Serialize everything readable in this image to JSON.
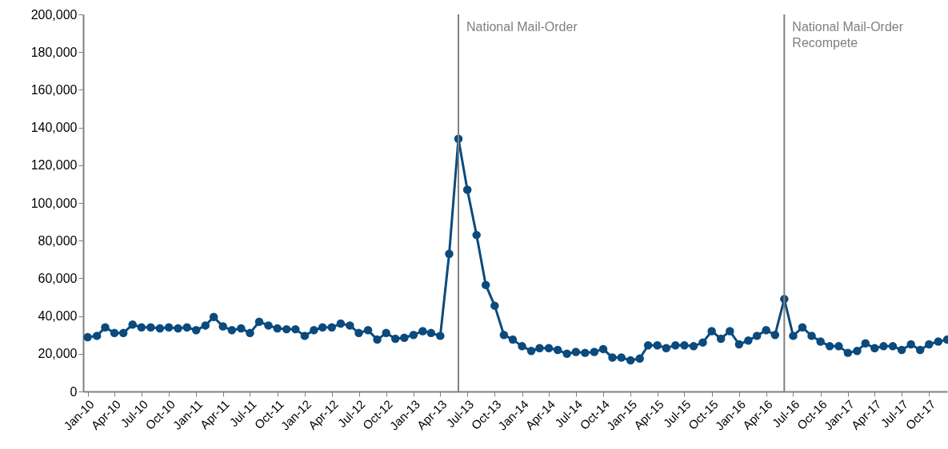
{
  "chart_data": {
    "type": "line",
    "x": [
      "2010-01",
      "2010-02",
      "2010-03",
      "2010-04",
      "2010-05",
      "2010-06",
      "2010-07",
      "2010-08",
      "2010-09",
      "2010-10",
      "2010-11",
      "2010-12",
      "2011-01",
      "2011-02",
      "2011-03",
      "2011-04",
      "2011-05",
      "2011-06",
      "2011-07",
      "2011-08",
      "2011-09",
      "2011-10",
      "2011-11",
      "2011-12",
      "2012-01",
      "2012-02",
      "2012-03",
      "2012-04",
      "2012-05",
      "2012-06",
      "2012-07",
      "2012-08",
      "2012-09",
      "2012-10",
      "2012-11",
      "2012-12",
      "2013-01",
      "2013-02",
      "2013-03",
      "2013-04",
      "2013-05",
      "2013-06",
      "2013-07",
      "2013-08",
      "2013-09",
      "2013-10",
      "2013-11",
      "2013-12",
      "2014-01",
      "2014-02",
      "2014-03",
      "2014-04",
      "2014-05",
      "2014-06",
      "2014-07",
      "2014-08",
      "2014-09",
      "2014-10",
      "2014-11",
      "2014-12",
      "2015-01",
      "2015-02",
      "2015-03",
      "2015-04",
      "2015-05",
      "2015-06",
      "2015-07",
      "2015-08",
      "2015-09",
      "2015-10",
      "2015-11",
      "2015-12",
      "2016-01",
      "2016-02",
      "2016-03",
      "2016-04",
      "2016-05",
      "2016-06",
      "2016-07",
      "2016-08",
      "2016-09",
      "2016-10",
      "2016-11",
      "2016-12",
      "2017-01",
      "2017-02",
      "2017-03",
      "2017-04",
      "2017-05",
      "2017-06",
      "2017-07",
      "2017-08",
      "2017-09",
      "2017-10",
      "2017-11",
      "2017-12"
    ],
    "series": [
      {
        "color": "#0b4a7d",
        "values": [
          28800,
          29500,
          34000,
          31000,
          31000,
          35500,
          34000,
          34000,
          33500,
          34000,
          33500,
          34000,
          32500,
          35000,
          39500,
          34500,
          32500,
          33500,
          31000,
          37000,
          35000,
          33500,
          33000,
          33000,
          29500,
          32500,
          34000,
          34000,
          36000,
          35000,
          31000,
          32500,
          27500,
          31000,
          28000,
          28500,
          30000,
          32000,
          31000,
          29500,
          73000,
          134000,
          107000,
          83000,
          56500,
          45500,
          30000,
          27500,
          24000,
          21500,
          23000,
          23000,
          22000,
          20000,
          21000,
          20500,
          21000,
          22500,
          18000,
          18000,
          16500,
          17500,
          24500,
          24500,
          23000,
          24500,
          24500,
          24000,
          26000,
          32000,
          28000,
          32000,
          25000,
          27000,
          29500,
          32500,
          30000,
          49000,
          29500,
          34000,
          29500,
          26500,
          24000,
          24000,
          20500,
          21500,
          25500,
          23000,
          24000,
          24000,
          22000,
          25000,
          22000,
          25000,
          26500,
          27500
        ]
      }
    ],
    "marker": "circle",
    "line_style": "solid",
    "xlim": [
      "2009-12-17",
      "2017-12-01"
    ],
    "xticks": [
      {
        "value": "2010-01",
        "label": "Jan-10"
      },
      {
        "value": "2010-04",
        "label": "Apr-10"
      },
      {
        "value": "2010-07",
        "label": "Jul-10"
      },
      {
        "value": "2010-10",
        "label": "Oct-10"
      },
      {
        "value": "2011-01",
        "label": "Jan-11"
      },
      {
        "value": "2011-04",
        "label": "Apr-11"
      },
      {
        "value": "2011-07",
        "label": "Jul-11"
      },
      {
        "value": "2011-10",
        "label": "Oct-11"
      },
      {
        "value": "2012-01",
        "label": "Jan-12"
      },
      {
        "value": "2012-04",
        "label": "Apr-12"
      },
      {
        "value": "2012-07",
        "label": "Jul-12"
      },
      {
        "value": "2012-10",
        "label": "Oct-12"
      },
      {
        "value": "2013-01",
        "label": "Jan-13"
      },
      {
        "value": "2013-04",
        "label": "Apr-13"
      },
      {
        "value": "2013-07",
        "label": "Jul-13"
      },
      {
        "value": "2013-10",
        "label": "Oct-13"
      },
      {
        "value": "2014-01",
        "label": "Jan-14"
      },
      {
        "value": "2014-04",
        "label": "Apr-14"
      },
      {
        "value": "2014-07",
        "label": "Jul-14"
      },
      {
        "value": "2014-10",
        "label": "Oct-14"
      },
      {
        "value": "2015-01",
        "label": "Jan-15"
      },
      {
        "value": "2015-04",
        "label": "Apr-15"
      },
      {
        "value": "2015-07",
        "label": "Jul-15"
      },
      {
        "value": "2015-10",
        "label": "Oct-15"
      },
      {
        "value": "2016-01",
        "label": "Jan-16"
      },
      {
        "value": "2016-04",
        "label": "Apr-16"
      },
      {
        "value": "2016-07",
        "label": "Jul-16"
      },
      {
        "value": "2016-10",
        "label": "Oct-16"
      },
      {
        "value": "2017-01",
        "label": "Jan-17"
      },
      {
        "value": "2017-04",
        "label": "Apr-17"
      },
      {
        "value": "2017-07",
        "label": "Jul-17"
      },
      {
        "value": "2017-10",
        "label": "Oct-17"
      }
    ],
    "ylim": [
      0,
      200000
    ],
    "yticks": [
      0,
      {
        "value": 20000,
        "label": "20,000"
      },
      {
        "value": 40000,
        "label": "40,000"
      },
      {
        "value": 60000,
        "label": "60,000"
      },
      {
        "value": 80000,
        "label": "80,000"
      },
      {
        "value": 100000,
        "label": "100,000"
      },
      {
        "value": 120000,
        "label": "120,000"
      },
      {
        "value": 140000,
        "label": "140,000"
      },
      {
        "value": 160000,
        "label": "160,000"
      },
      {
        "value": 180000,
        "label": "180,000"
      },
      {
        "value": 200000,
        "label": "200,000"
      }
    ],
    "grid": false,
    "ref_lines": [
      {
        "axis": "x",
        "value": "2013-06",
        "label": "National Mail-Order",
        "color": "#808080"
      },
      {
        "axis": "x",
        "value": "2016-06",
        "label": "National Mail-Order\nRecompete",
        "color": "#808080"
      }
    ]
  }
}
